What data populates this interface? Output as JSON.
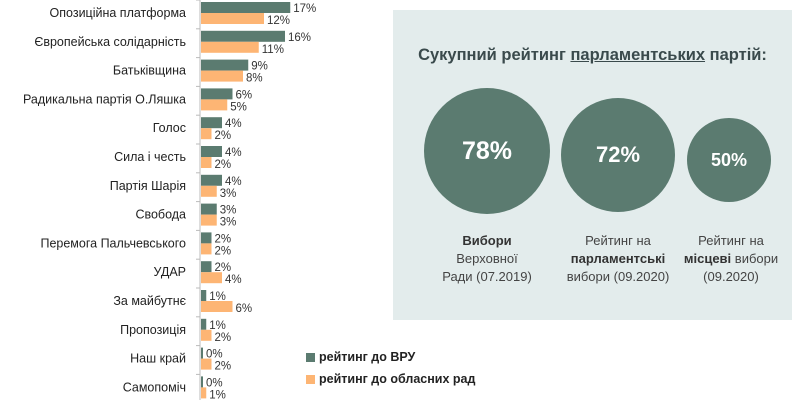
{
  "chart_data": {
    "type": "bar",
    "orientation": "horizontal",
    "categories": [
      "Опозиційна платформа",
      "Європейська солідарність",
      "Батьківщина",
      "Радикальна партія О.Ляшка",
      "Голос",
      "Сила і честь",
      "Партія Шарія",
      "Свобода",
      "Перемога Пальчевського",
      "УДАР",
      "За майбутнє",
      "Пропозиція",
      "Наш край",
      "Самопоміч"
    ],
    "series": [
      {
        "name": "рейтинг до ВРУ",
        "color": "#5b7b70",
        "values": [
          17,
          16,
          9,
          6,
          4,
          4,
          4,
          3,
          2,
          2,
          1,
          1,
          0,
          0
        ]
      },
      {
        "name": "рейтинг до обласних рад",
        "color": "#fdb574",
        "values": [
          12,
          11,
          8,
          5,
          2,
          2,
          3,
          3,
          2,
          4,
          6,
          2,
          2,
          1
        ]
      }
    ],
    "value_suffix": "%",
    "legend_position": "bottom-right",
    "grid": false
  },
  "legend": {
    "items": [
      {
        "label": "рейтинг до ВРУ",
        "color": "#5b7b70"
      },
      {
        "label": "рейтинг до обласних рад",
        "color": "#fdb574"
      }
    ]
  },
  "panel": {
    "title_pre": "Сукупний рейтинг ",
    "title_underlined": "парламентських",
    "title_post": " партій:",
    "circles": [
      {
        "value": "78%",
        "cap_line1_bold": "Вибори",
        "cap_line2": "Верховної",
        "cap_line3": "Ради (07.2019)"
      },
      {
        "value": "72%",
        "cap_line1": "Рейтинг на",
        "cap_line2_bold": "парламентські",
        "cap_line3": "вибори (09.2020)"
      },
      {
        "value": "50%",
        "cap_line1": "Рейтинг на",
        "cap_line2_bold": "місцеві",
        "cap_line2_rest": " вибори",
        "cap_line3": "(09.2020)"
      }
    ]
  },
  "colors": {
    "green": "#5b7b70",
    "orange": "#fdb574",
    "panel_bg": "#e3ecec"
  }
}
